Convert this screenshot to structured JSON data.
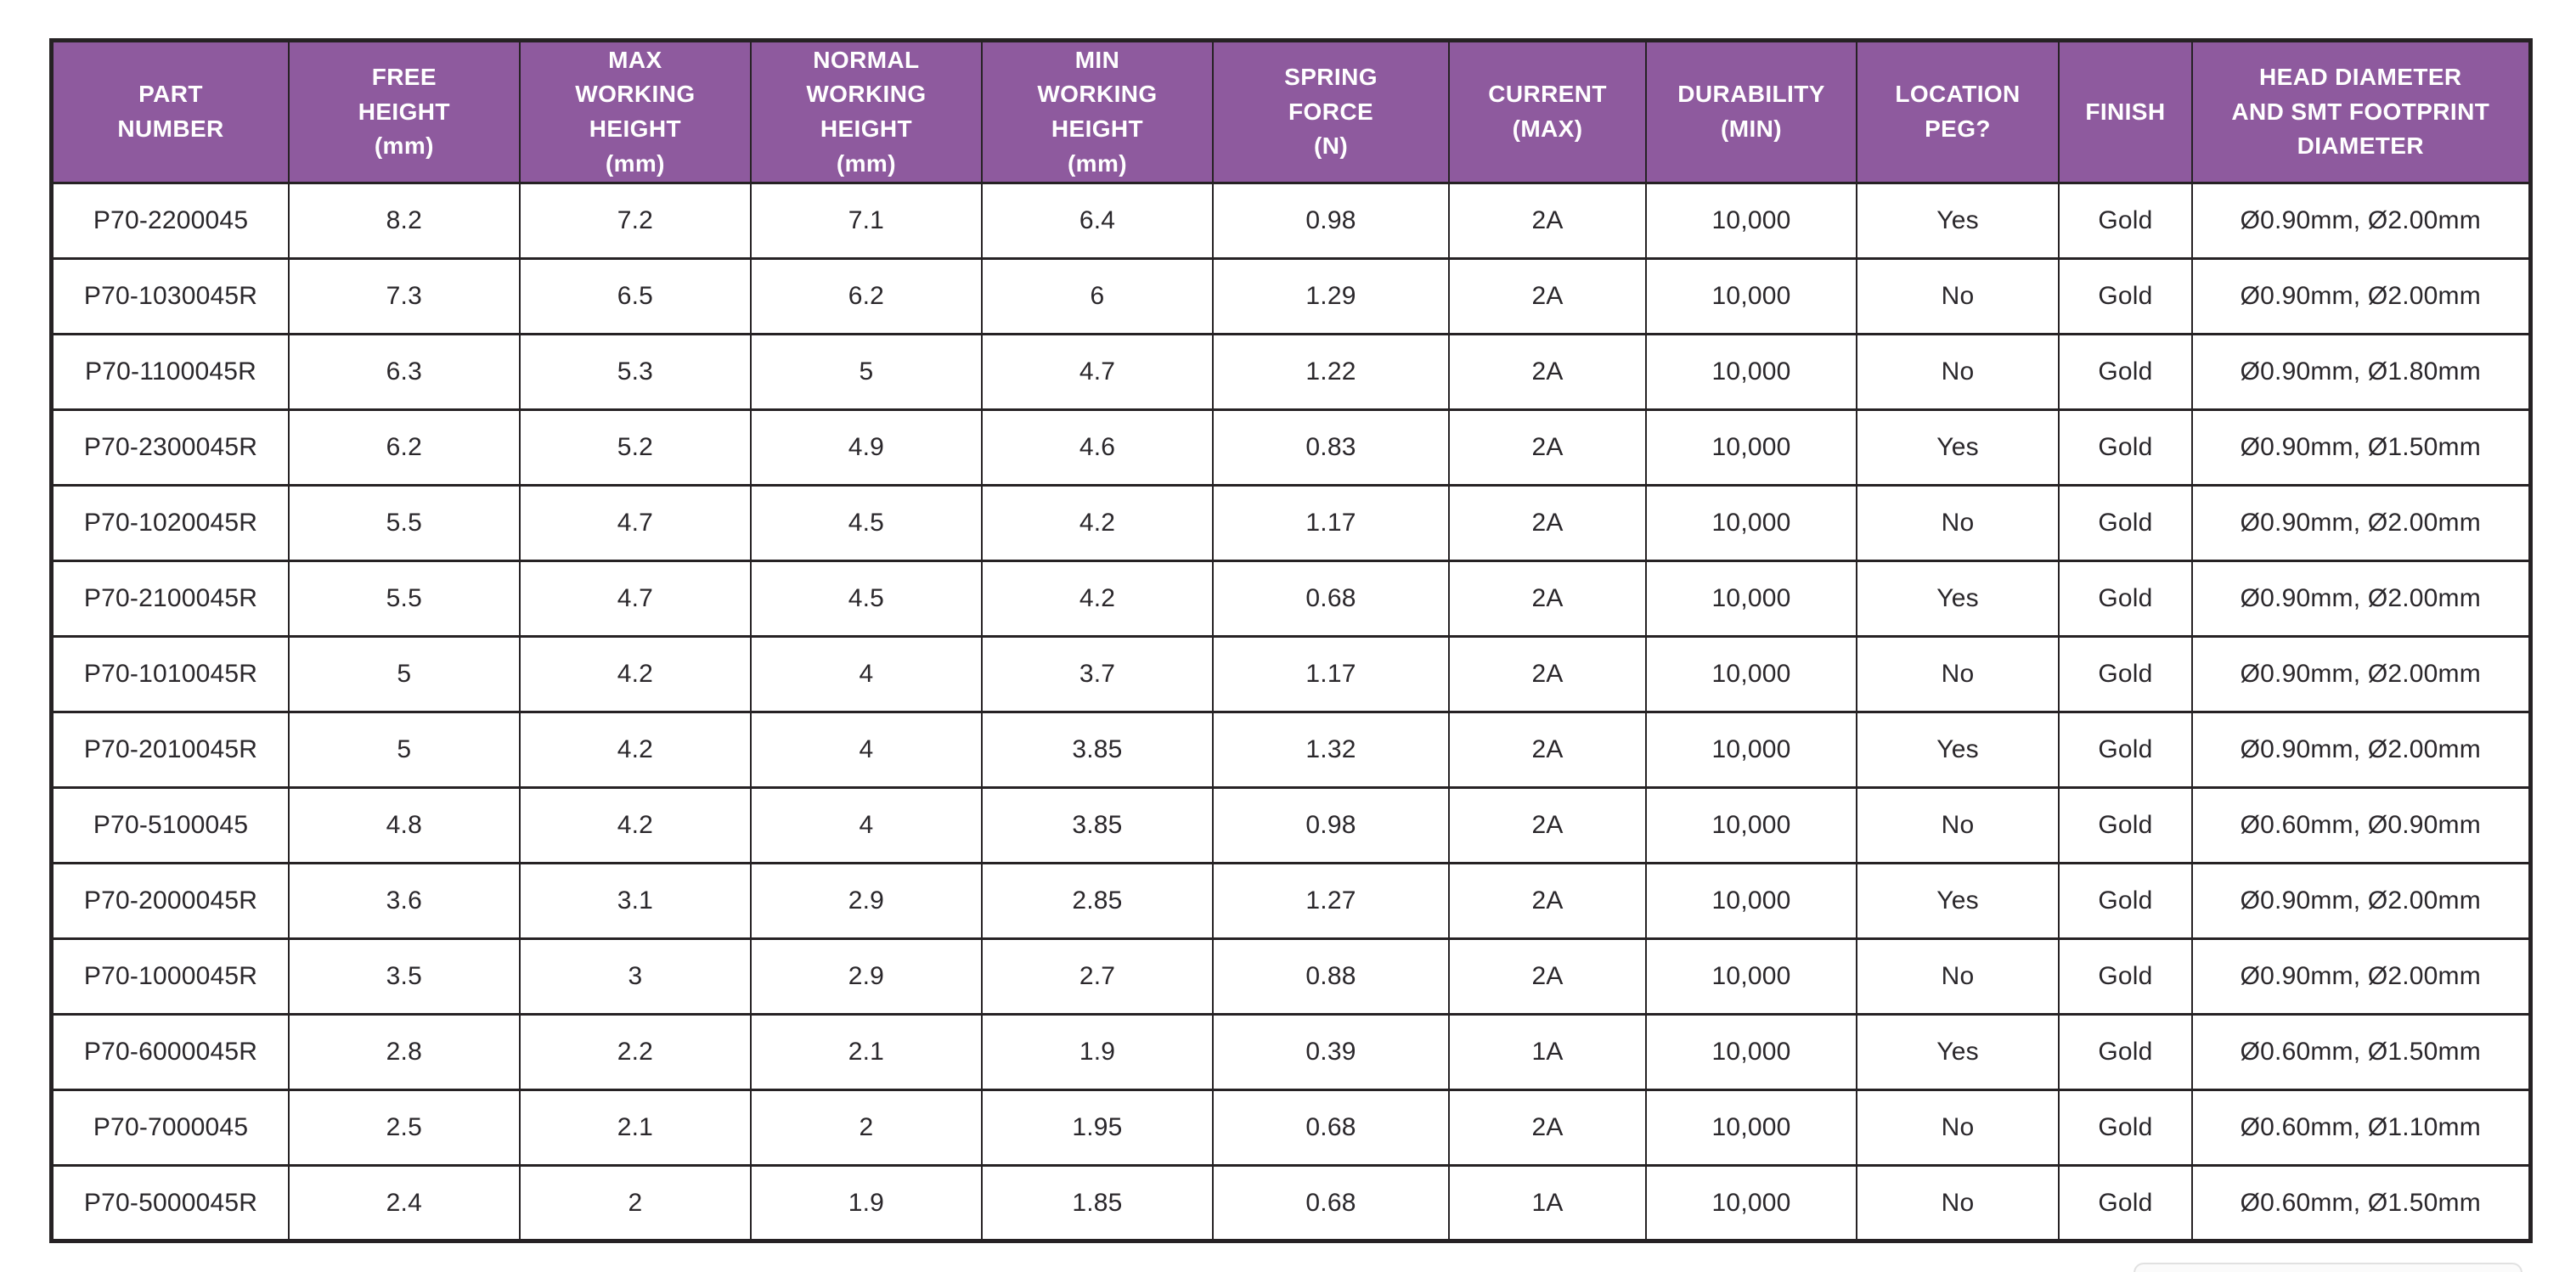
{
  "table": {
    "accent_color": "#8e5a9e",
    "border_color": "#262224",
    "text_color": "#2a272b",
    "headers": [
      "PART\nNUMBER",
      "FREE\nHEIGHT\n(mm)",
      "MAX\nWORKING\nHEIGHT\n(mm)",
      "NORMAL\nWORKING\nHEIGHT\n(mm)",
      "MIN\nWORKING\nHEIGHT\n(mm)",
      "SPRING\nFORCE\n(N)",
      "CURRENT\n(MAX)",
      "DURABILITY\n(MIN)",
      "LOCATION\nPEG?",
      "FINISH",
      "HEAD DIAMETER\nAND SMT FOOTPRINT\nDIAMETER"
    ],
    "rows": [
      [
        "P70-2200045",
        "8.2",
        "7.2",
        "7.1",
        "6.4",
        "0.98",
        "2A",
        "10,000",
        "Yes",
        "Gold",
        "Ø0.90mm, Ø2.00mm"
      ],
      [
        "P70-1030045R",
        "7.3",
        "6.5",
        "6.2",
        "6",
        "1.29",
        "2A",
        "10,000",
        "No",
        "Gold",
        "Ø0.90mm, Ø2.00mm"
      ],
      [
        "P70-1100045R",
        "6.3",
        "5.3",
        "5",
        "4.7",
        "1.22",
        "2A",
        "10,000",
        "No",
        "Gold",
        "Ø0.90mm, Ø1.80mm"
      ],
      [
        "P70-2300045R",
        "6.2",
        "5.2",
        "4.9",
        "4.6",
        "0.83",
        "2A",
        "10,000",
        "Yes",
        "Gold",
        "Ø0.90mm, Ø1.50mm"
      ],
      [
        "P70-1020045R",
        "5.5",
        "4.7",
        "4.5",
        "4.2",
        "1.17",
        "2A",
        "10,000",
        "No",
        "Gold",
        "Ø0.90mm, Ø2.00mm"
      ],
      [
        "P70-2100045R",
        "5.5",
        "4.7",
        "4.5",
        "4.2",
        "0.68",
        "2A",
        "10,000",
        "Yes",
        "Gold",
        "Ø0.90mm, Ø2.00mm"
      ],
      [
        "P70-1010045R",
        "5",
        "4.2",
        "4",
        "3.7",
        "1.17",
        "2A",
        "10,000",
        "No",
        "Gold",
        "Ø0.90mm, Ø2.00mm"
      ],
      [
        "P70-2010045R",
        "5",
        "4.2",
        "4",
        "3.85",
        "1.32",
        "2A",
        "10,000",
        "Yes",
        "Gold",
        "Ø0.90mm, Ø2.00mm"
      ],
      [
        "P70-5100045",
        "4.8",
        "4.2",
        "4",
        "3.85",
        "0.98",
        "2A",
        "10,000",
        "No",
        "Gold",
        "Ø0.60mm, Ø0.90mm"
      ],
      [
        "P70-2000045R",
        "3.6",
        "3.1",
        "2.9",
        "2.85",
        "1.27",
        "2A",
        "10,000",
        "Yes",
        "Gold",
        "Ø0.90mm, Ø2.00mm"
      ],
      [
        "P70-1000045R",
        "3.5",
        "3",
        "2.9",
        "2.7",
        "0.88",
        "2A",
        "10,000",
        "No",
        "Gold",
        "Ø0.90mm, Ø2.00mm"
      ],
      [
        "P70-6000045R",
        "2.8",
        "2.2",
        "2.1",
        "1.9",
        "0.39",
        "1A",
        "10,000",
        "Yes",
        "Gold",
        "Ø0.60mm, Ø1.50mm"
      ],
      [
        "P70-7000045",
        "2.5",
        "2.1",
        "2",
        "1.95",
        "0.68",
        "2A",
        "10,000",
        "No",
        "Gold",
        "Ø0.60mm, Ø1.10mm"
      ],
      [
        "P70-5000045R",
        "2.4",
        "2",
        "1.9",
        "1.85",
        "0.68",
        "1A",
        "10,000",
        "No",
        "Gold",
        "Ø0.60mm, Ø1.50mm"
      ]
    ]
  }
}
